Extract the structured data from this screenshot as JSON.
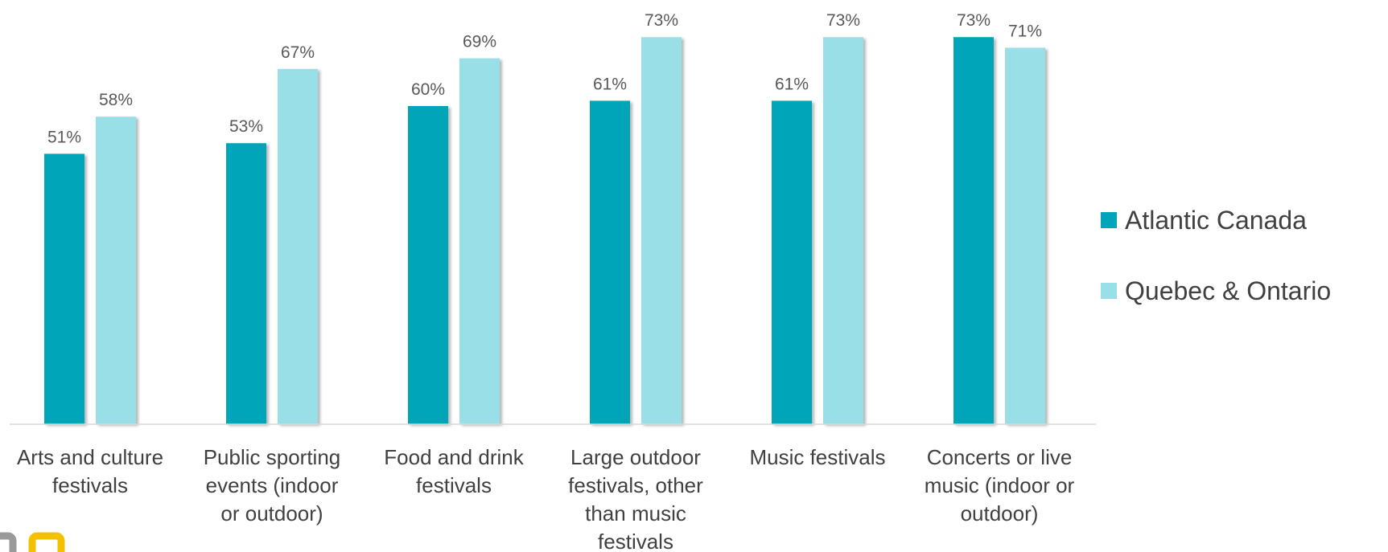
{
  "chart_data": {
    "type": "bar",
    "categories": [
      [
        "Arts and culture",
        "festivals"
      ],
      [
        "Public sporting",
        "events (indoor",
        "or outdoor)"
      ],
      [
        "Food and drink",
        "festivals"
      ],
      [
        "Large outdoor",
        "festivals, other",
        "than music",
        "festivals"
      ],
      [
        "Music festivals"
      ],
      [
        "Concerts or live",
        "music (indoor or",
        "outdoor)"
      ]
    ],
    "series": [
      {
        "name": "Atlantic Canada",
        "color": "#00A5B9",
        "values": [
          51,
          53,
          60,
          61,
          61,
          73
        ],
        "labels": [
          "51%",
          "53%",
          "60%",
          "61%",
          "61%",
          "73%"
        ]
      },
      {
        "name": "Quebec & Ontario",
        "color": "#98DFE7",
        "values": [
          58,
          67,
          69,
          73,
          73,
          71
        ],
        "labels": [
          "58%",
          "67%",
          "69%",
          "73%",
          "73%",
          "71%"
        ]
      }
    ],
    "ylim": [
      0,
      80
    ],
    "grid": false,
    "legend_position": "right",
    "title": "",
    "xlabel": "",
    "ylabel": ""
  }
}
